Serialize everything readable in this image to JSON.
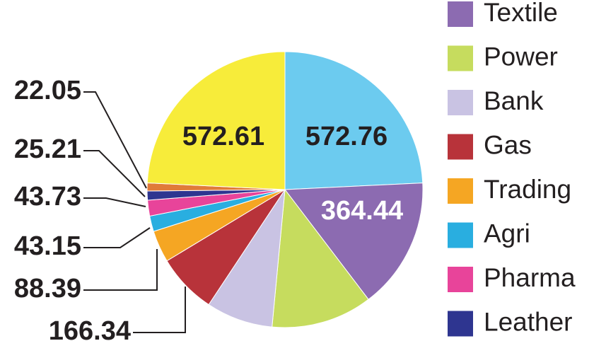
{
  "chart_data": {
    "type": "pie",
    "categories": [
      null,
      "Textile",
      "Power",
      "Bank",
      "Gas",
      "Trading",
      "Agri",
      "Pharma",
      "Leather",
      null,
      null
    ],
    "values": [
      572.76,
      364.44,
      280,
      185,
      166.34,
      88.39,
      43.15,
      43.73,
      25.21,
      22.05,
      572.61
    ],
    "colors": [
      "#6ccbef",
      "#8c6bb1",
      "#c6dc5e",
      "#c9c3e3",
      "#b8333a",
      "#f5a623",
      "#29aee0",
      "#e8449a",
      "#2e3590",
      "#e07b39",
      "#f7ec3a"
    ]
  }
}
